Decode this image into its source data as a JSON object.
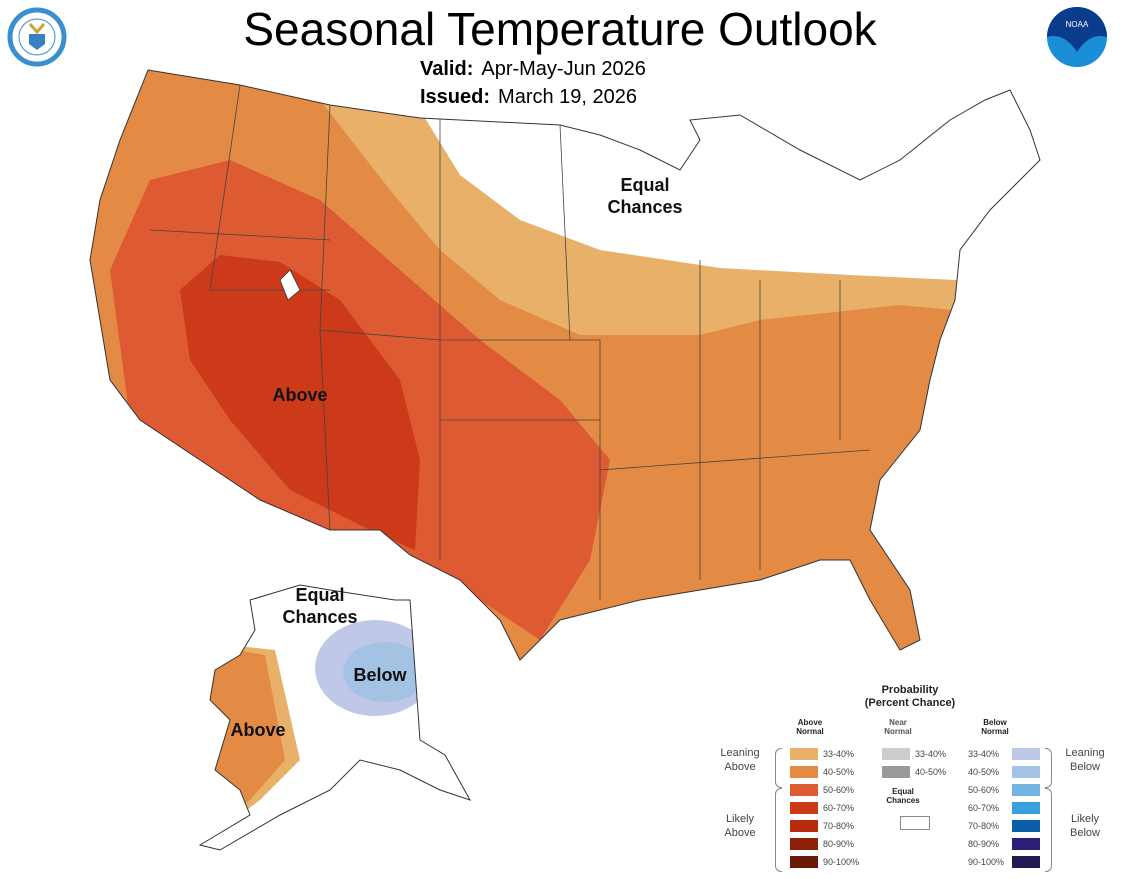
{
  "header": {
    "title": "Seasonal Temperature Outlook",
    "valid_label": "Valid:",
    "valid_value": "Apr-May-Jun 2026",
    "issued_label": "Issued:",
    "issued_value": "March 19, 2026"
  },
  "logos": {
    "left": "department-of-commerce-seal",
    "right": "NOAA"
  },
  "map_labels": {
    "conus_equal": "Equal Chances",
    "conus_above": "Above",
    "ak_equal": "Equal Chances",
    "ak_below": "Below",
    "ak_above": "Above"
  },
  "legend": {
    "title": "Probability",
    "subtitle": "(Percent Chance)",
    "above_header": "Above Normal",
    "near_header": "Near Normal",
    "below_header": "Below Normal",
    "equal_chances": "Equal Chances",
    "leaning_above": "Leaning Above",
    "likely_above": "Likely Above",
    "leaning_below": "Leaning Below",
    "likely_below": "Likely Below",
    "above": [
      {
        "range": "33-40%",
        "color": "#e8b068"
      },
      {
        "range": "40-50%",
        "color": "#e38a45"
      },
      {
        "range": "50-60%",
        "color": "#dd5a32"
      },
      {
        "range": "60-70%",
        "color": "#cc3a1a"
      },
      {
        "range": "70-80%",
        "color": "#b82c0c"
      },
      {
        "range": "80-90%",
        "color": "#8e2208"
      },
      {
        "range": "90-100%",
        "color": "#6a1a06"
      }
    ],
    "near": [
      {
        "range": "33-40%",
        "color": "#cccccc"
      },
      {
        "range": "40-50%",
        "color": "#999999"
      }
    ],
    "below": [
      {
        "range": "33-40%",
        "color": "#bfc8e6"
      },
      {
        "range": "40-50%",
        "color": "#a4c2e4"
      },
      {
        "range": "50-60%",
        "color": "#74b3e2"
      },
      {
        "range": "60-70%",
        "color": "#3aa0dc"
      },
      {
        "range": "70-80%",
        "color": "#0c5ea8"
      },
      {
        "range": "80-90%",
        "color": "#2d1f78"
      },
      {
        "range": "90-100%",
        "color": "#1f1a52"
      }
    ]
  }
}
